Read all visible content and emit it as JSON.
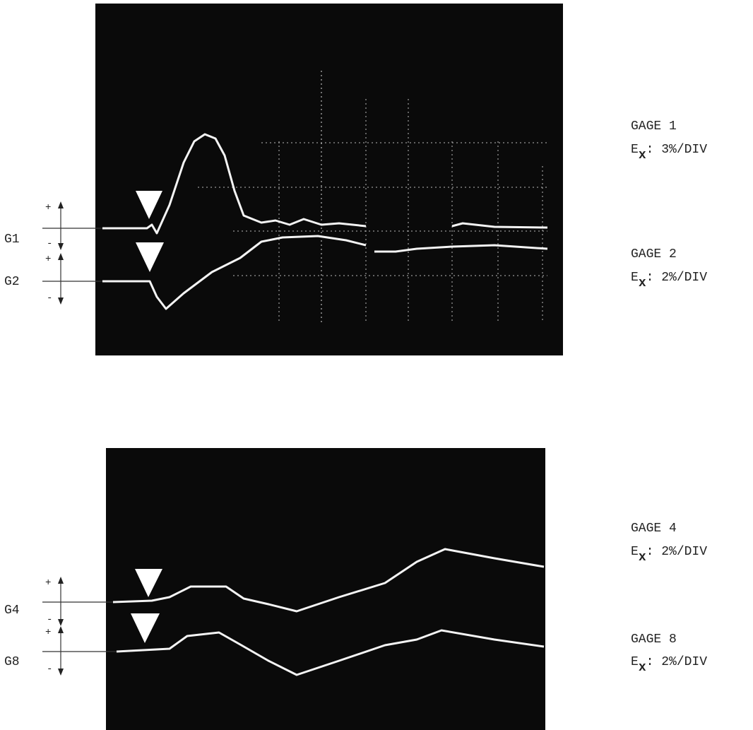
{
  "panels": [
    {
      "gages": [
        {
          "tag": "G1",
          "title": "GAGE 1",
          "quantity": "E",
          "subscript": "x",
          "scale": ": 3%/DIV"
        },
        {
          "tag": "G2",
          "title": "GAGE 2",
          "quantity": "E",
          "subscript": "x",
          "scale": ": 2%/DIV"
        }
      ]
    },
    {
      "gages": [
        {
          "tag": "G4",
          "title": "GAGE 4",
          "quantity": "E",
          "subscript": "x",
          "scale": ": 2%/DIV"
        },
        {
          "tag": "G8",
          "title": "GAGE 8",
          "quantity": "E",
          "subscript": "x",
          "scale": ": 2%/DIV"
        }
      ]
    }
  ],
  "polarity": {
    "plus": "+",
    "minus": "-"
  }
}
